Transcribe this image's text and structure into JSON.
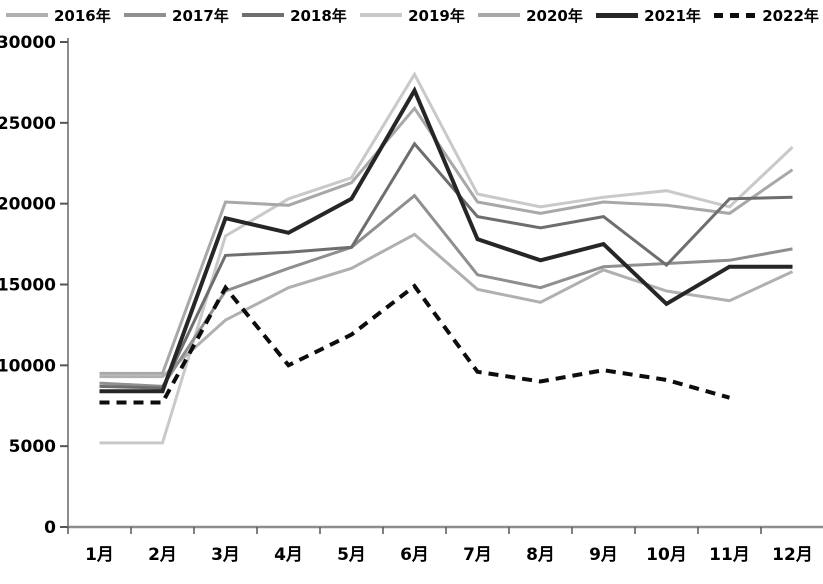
{
  "chart_data": {
    "type": "line",
    "title": "",
    "xlabel": "",
    "ylabel": "",
    "x_categories": [
      "1月",
      "2月",
      "3月",
      "4月",
      "5月",
      "6月",
      "7月",
      "8月",
      "9月",
      "10月",
      "11月",
      "12月"
    ],
    "ylim": [
      0,
      30000
    ],
    "y_ticks": [
      0,
      5000,
      10000,
      15000,
      20000,
      25000,
      30000
    ],
    "grid": false,
    "legend_position": "top",
    "axis_color": "#8c8c8c",
    "tick_color": "#555555",
    "label_color": "#000000",
    "series": [
      {
        "name": "2016年",
        "color": "#b0b0b0",
        "style": "solid",
        "width": 3,
        "z": 2,
        "values": [
          9300,
          9300,
          12800,
          14800,
          16000,
          18100,
          14700,
          13900,
          15900,
          14600,
          14000,
          15800
        ]
      },
      {
        "name": "2017年",
        "color": "#8f8f8f",
        "style": "solid",
        "width": 3,
        "z": 4,
        "values": [
          8900,
          8700,
          14600,
          16000,
          17300,
          20500,
          15600,
          14800,
          16100,
          16300,
          16500,
          17200
        ]
      },
      {
        "name": "2018年",
        "color": "#6e6e6e",
        "style": "solid",
        "width": 3,
        "z": 5,
        "values": [
          8700,
          8600,
          16800,
          17000,
          17300,
          23700,
          19200,
          18500,
          19200,
          16200,
          20300,
          20400
        ]
      },
      {
        "name": "2019年",
        "color": "#c9c9c9",
        "style": "solid",
        "width": 3,
        "z": 1,
        "values": [
          5200,
          5200,
          18000,
          20300,
          21600,
          28000,
          20600,
          19800,
          20400,
          20800,
          19800,
          23500
        ]
      },
      {
        "name": "2020年",
        "color": "#a8a8a8",
        "style": "solid",
        "width": 3,
        "z": 3,
        "values": [
          9500,
          9500,
          20100,
          19900,
          21300,
          25900,
          20100,
          19400,
          20100,
          19900,
          19400,
          22100
        ]
      },
      {
        "name": "2021年",
        "color": "#262626",
        "style": "solid",
        "width": 4,
        "z": 6,
        "values": [
          8400,
          8400,
          19100,
          18200,
          20300,
          27000,
          17800,
          16500,
          17500,
          13800,
          16100,
          16100
        ]
      },
      {
        "name": "2022年",
        "color": "#0d0d0d",
        "style": "dashed",
        "width": 4,
        "z": 7,
        "values": [
          7700,
          7700,
          14800,
          10000,
          11900,
          14900,
          9600,
          9000,
          9700,
          9100,
          8000,
          null
        ]
      }
    ]
  }
}
